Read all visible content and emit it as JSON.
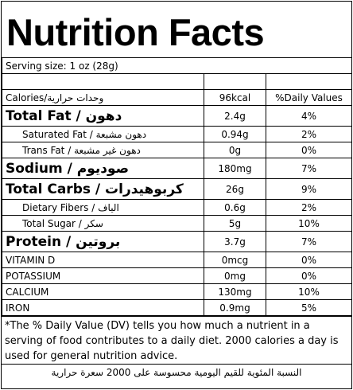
{
  "title": "Nutrition Facts",
  "serving_size": "Serving size: 1 oz (28g)",
  "rows": [
    [
      "Calories/وحدات حرارية",
      "96kcal",
      "%Daily Values"
    ],
    [
      "Total Fat / دهون",
      "2.4g",
      "4%"
    ],
    [
      "Saturated Fat / دهون مشبعة",
      "0.94g",
      "2%"
    ],
    [
      "Trans Fat / دهون غير مشبعة",
      "0g",
      "0%"
    ],
    [
      "Sodium / صوديوم",
      "180mg",
      "7%"
    ],
    [
      "Total Carbs / كربوهيدرات",
      "26g",
      "9%"
    ],
    [
      "Dietary Fibers / الياف",
      "0.6g",
      "2%"
    ],
    [
      "Total Sugar / سكر",
      "5g",
      "10%"
    ],
    [
      "Protein / بروتين",
      "3.7g",
      "7%"
    ],
    [
      "VITAMIN D",
      "0mcg",
      "0%"
    ],
    [
      "POTASSIUM",
      "0mg",
      "0%"
    ],
    [
      "CALCIUM",
      "130mg",
      "10%"
    ],
    [
      "IRON",
      "0.9mg",
      "5%"
    ]
  ],
  "footnote": "*The % Daily Value (DV) tells you how much a nutrient in a serving of food contributes to a daily diet. 2000 calories a day is used for general nutrition advice.",
  "footnote_ar": "النسبة المئوية للقيم اليومية محسوسة على 2000 سعرة حرارية"
}
